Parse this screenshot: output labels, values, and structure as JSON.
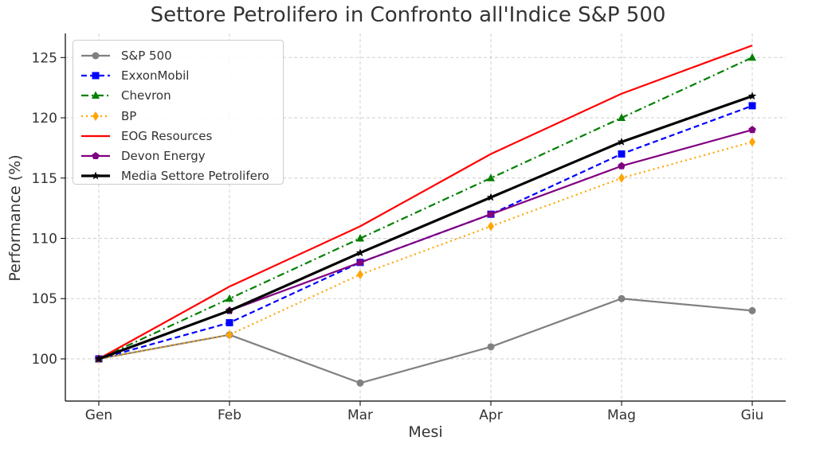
{
  "chart_data": {
    "type": "line",
    "title": "Settore Petrolifero in Confronto all'Indice S&P 500",
    "xlabel": "Mesi",
    "ylabel": "Performance (%)",
    "categories": [
      "Gen",
      "Feb",
      "Mar",
      "Apr",
      "Mag",
      "Giu"
    ],
    "ylim": [
      96.5,
      127
    ],
    "yticks": [
      100,
      105,
      110,
      115,
      120,
      125
    ],
    "grid": true,
    "legend_position": "top-left",
    "series": [
      {
        "name": "S&P 500",
        "values": [
          100,
          102,
          98,
          101,
          105,
          104
        ],
        "color": "#808080",
        "marker": "circle",
        "dash": "solid",
        "width": 2.2
      },
      {
        "name": "ExxonMobil",
        "values": [
          100,
          103,
          108,
          112,
          117,
          121
        ],
        "color": "#0000ff",
        "marker": "square",
        "dash": "dashed",
        "width": 2.2
      },
      {
        "name": "Chevron",
        "values": [
          100,
          105,
          110,
          115,
          120,
          125
        ],
        "color": "#008000",
        "marker": "triangle",
        "dash": "dashdot",
        "width": 2.2
      },
      {
        "name": "BP",
        "values": [
          100,
          102,
          107,
          111,
          115,
          118
        ],
        "color": "#ffa500",
        "marker": "diamond",
        "dash": "dotted",
        "width": 2.2
      },
      {
        "name": "EOG Resources",
        "values": [
          100,
          106,
          111,
          117,
          122,
          126
        ],
        "color": "#ff0000",
        "marker": "none",
        "dash": "solid",
        "width": 2.2
      },
      {
        "name": "Devon Energy",
        "values": [
          100,
          104,
          108,
          112,
          116,
          119
        ],
        "color": "#800080",
        "marker": "pentagon",
        "dash": "solid",
        "width": 2.2
      },
      {
        "name": "Media Settore Petrolifero",
        "values": [
          100,
          104,
          108.8,
          113.4,
          118,
          121.8
        ],
        "color": "#000000",
        "marker": "star",
        "dash": "solid",
        "width": 3.2
      }
    ]
  }
}
